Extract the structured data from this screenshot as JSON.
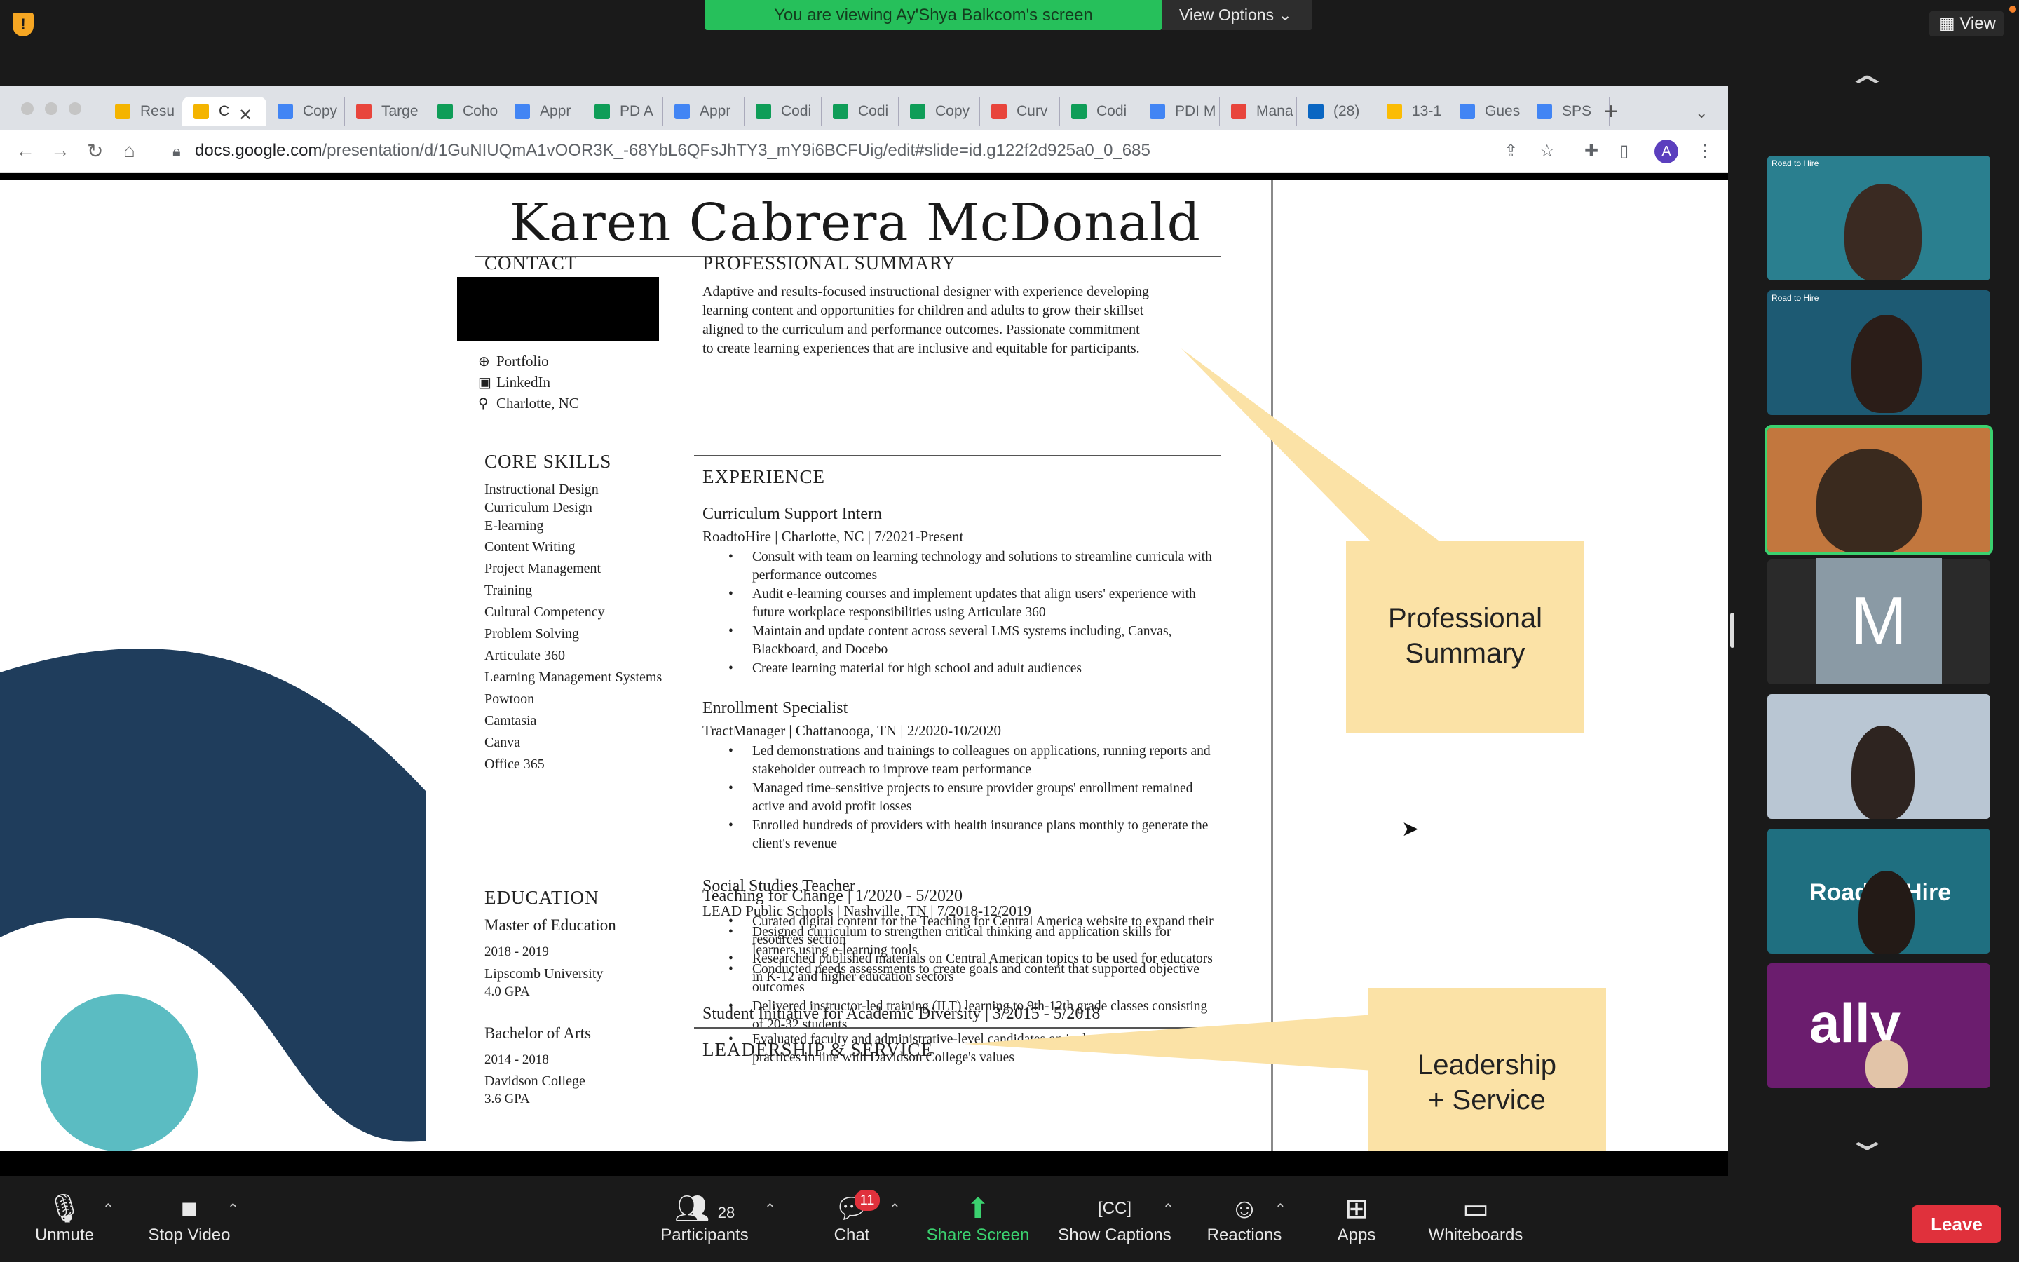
{
  "zoom": {
    "viewing_banner": "You are viewing Ay'Shya Balkcom's screen",
    "view_options": "View Options",
    "view": "View",
    "toolbar": {
      "unmute": "Unmute",
      "stop_video": "Stop Video",
      "participants": "Participants",
      "participants_count": "28",
      "chat": "Chat",
      "chat_badge": "11",
      "share_screen": "Share Screen",
      "show_captions": "Show Captions",
      "reactions": "Reactions",
      "apps": "Apps",
      "whiteboards": "Whiteboards",
      "leave": "Leave"
    },
    "gallery_letter": "M",
    "thumb_marks": [
      "Road to Hire",
      "Road to Hire",
      "Road to Hire",
      "ally"
    ]
  },
  "browser": {
    "tabs": [
      "Resu",
      "C",
      "Copy",
      "Targe",
      "Coho",
      "Appr",
      "PD A",
      "Appr",
      "Codi",
      "Codi",
      "Copy",
      "Curv",
      "Codi",
      "PDI M",
      "Mana",
      "(28)",
      "13-1",
      "Gues",
      "SPS"
    ],
    "tab_icon_colors": [
      "#f4b400",
      "#f4b400",
      "#4285f4",
      "#e8453c",
      "#0f9d58",
      "#4285f4",
      "#0f9d58",
      "#4285f4",
      "#0f9d58",
      "#0f9d58",
      "#0f9d58",
      "#e8453c",
      "#0f9d58",
      "#4285f4",
      "#e8453c",
      "#0a66c2",
      "#fbbc04",
      "#4285f4",
      "#4285f4"
    ],
    "url_host": "docs.google.com",
    "url_path": "/presentation/d/1GuNIUQmA1vOOR3K_-68YbL6QFsJhTY3_mY9i6BCFUig/edit#slide=id.g122f2d925a0_0_685",
    "avatar": "A"
  },
  "resume": {
    "name": "Karen Cabrera McDonald",
    "contact_head": "CONTACT",
    "contact": [
      "Portfolio",
      "LinkedIn",
      "Charlotte, NC"
    ],
    "skills_head": "CORE SKILLS",
    "skills": [
      "Instructional Design",
      "Curriculum Design",
      "E-learning",
      "Content Writing",
      "Project Management",
      "Training",
      "Cultural Competency",
      "Problem Solving",
      "Articulate 360",
      "Learning Management Systems",
      "Powtoon",
      "Camtasia",
      "Canva",
      "Office 365"
    ],
    "education_head": "EDUCATION",
    "education": [
      {
        "degree": "Master of Education",
        "years": "2018 - 2019",
        "school": "Lipscomb University",
        "gpa": "4.0 GPA"
      },
      {
        "degree": "Bachelor of Arts",
        "years": "2014 - 2018",
        "school": "Davidson College",
        "gpa": "3.6 GPA"
      }
    ],
    "summary_head": "PROFESSIONAL SUMMARY",
    "summary": [
      "Adaptive and results-focused instructional designer with experience developing",
      "learning content and opportunities for children and adults to grow their skillset",
      "aligned to the curriculum and performance outcomes. Passionate commitment",
      "to create learning experiences that are inclusive and equitable for participants."
    ],
    "experience_head": "EXPERIENCE",
    "jobs": [
      {
        "title": "Curriculum Support Intern",
        "meta": "RoadtoHire | Charlotte, NC | 7/2021-Present",
        "bullets": [
          "Consult with team on learning technology and solutions to streamline curricula with performance outcomes",
          "Audit e-learning courses and implement updates that align users' experience with future workplace responsibilities using Articulate 360",
          "Maintain and update content across several LMS systems including, Canvas, Blackboard, and Docebo",
          "Create learning material for high school and adult audiences"
        ]
      },
      {
        "title": "Enrollment Specialist",
        "meta": "TractManager | Chattanooga, TN | 2/2020-10/2020",
        "bullets": [
          "Led demonstrations and trainings to colleagues on applications, running reports and stakeholder outreach to improve team performance",
          "Managed time-sensitive projects to ensure provider groups' enrollment remained active and avoid profit losses",
          "Enrolled hundreds of providers with health insurance plans monthly to generate the client's revenue"
        ]
      },
      {
        "title": "Social Studies Teacher",
        "meta": "LEAD Public Schools | Nashville, TN | 7/2018-12/2019",
        "bullets": [
          "Designed curriculum to strengthen critical thinking and application skills for learners using e-learning tools",
          "Conducted needs assessments to create goals and content that supported objective outcomes",
          "Delivered instructor-led training (ILT) learning to 9th-12th grade classes consisting of 20-32 students"
        ]
      }
    ],
    "leadership_head": "LEADERSHIP & SERVICE",
    "leadership": [
      {
        "title": "Teaching for Change | 1/2020 - 5/2020",
        "bullets": [
          "Curated digital content for the Teaching for Central America website to expand their resources section",
          "Researched published materials on Central American topics to be used for educators in K-12 and higher education sectors"
        ]
      },
      {
        "title": "Student Initiative for Academic Diversity | 3/2015 - 5/2018",
        "bullets": [
          "Evaluated faculty and administrative-level candidates on inclusive and equitable practices in line with Davidson College's values"
        ]
      }
    ],
    "callout_summary": [
      "Professional",
      "Summary"
    ],
    "callout_leadership": [
      "Leadership",
      "+ Service"
    ]
  },
  "colors": {
    "zoom_green": "#26c05b",
    "leave_red": "#e0313c",
    "callout": "#fbe2a6",
    "navy": "#1f3d5c",
    "teal": "#5bbcc2"
  }
}
